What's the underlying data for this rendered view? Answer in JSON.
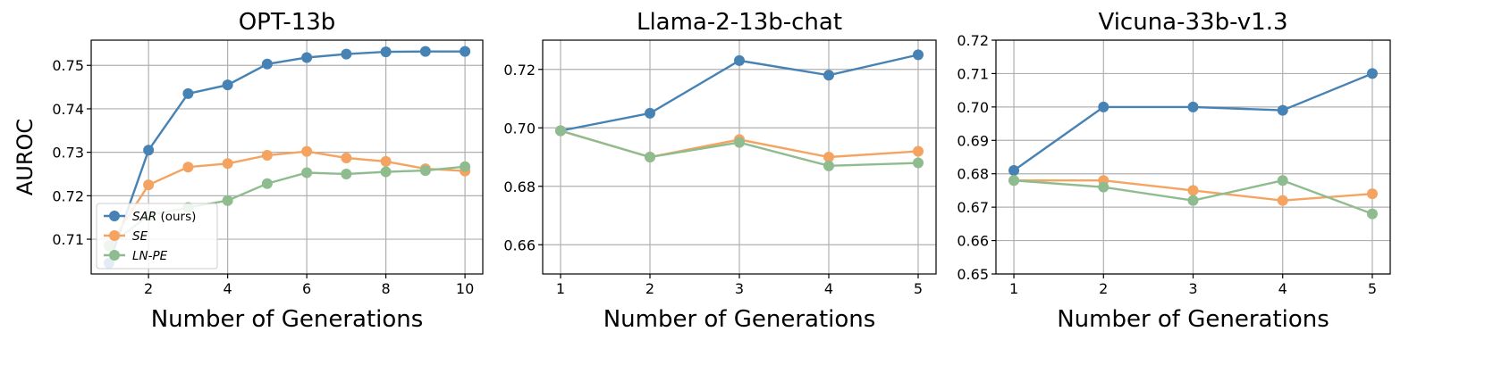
{
  "chart_data": [
    {
      "type": "line",
      "title": "OPT-13b",
      "xlabel": "Number of Generations",
      "ylabel": "AUROC",
      "xlim": [
        0.55,
        10.45
      ],
      "ylim": [
        0.702,
        0.7558
      ],
      "xticks": [
        2,
        4,
        6,
        8,
        10
      ],
      "yticks": [
        0.71,
        0.72,
        0.73,
        0.74,
        0.75
      ],
      "ytick_labels": [
        "0.71",
        "0.72",
        "0.73",
        "0.74",
        "0.75"
      ],
      "grid": true,
      "legend": "lower-left",
      "x": [
        1,
        2,
        3,
        4,
        5,
        6,
        7,
        8,
        9,
        10
      ],
      "series": [
        {
          "name": "SAR",
          "name_suffix": " (ours)",
          "color": "#4682b4",
          "values": [
            0.7045,
            0.7305,
            0.7435,
            0.7455,
            0.7503,
            0.7518,
            0.7526,
            0.7531,
            0.7532,
            0.7532
          ]
        },
        {
          "name": "SE",
          "color": "#f4a460",
          "values": [
            0.7085,
            0.7225,
            0.7266,
            0.7274,
            0.7293,
            0.7302,
            0.7287,
            0.7279,
            0.7262,
            0.7257
          ]
        },
        {
          "name": "LN-PE",
          "color": "#8fbc8f",
          "values": [
            0.7085,
            0.7155,
            0.7173,
            0.7189,
            0.7228,
            0.7253,
            0.725,
            0.7255,
            0.7258,
            0.7267
          ]
        }
      ]
    },
    {
      "type": "line",
      "title": "Llama-2-13b-chat",
      "xlabel": "Number of Generations",
      "ylabel": "",
      "xlim": [
        0.8,
        5.2
      ],
      "ylim": [
        0.65,
        0.73
      ],
      "xticks": [
        1,
        2,
        3,
        4,
        5
      ],
      "yticks": [
        0.66,
        0.68,
        0.7,
        0.72
      ],
      "ytick_labels": [
        "0.66",
        "0.68",
        "0.70",
        "0.72"
      ],
      "grid": true,
      "x": [
        1,
        2,
        3,
        4,
        5
      ],
      "series": [
        {
          "name": "SAR (ours)",
          "color": "#4682b4",
          "values": [
            0.699,
            0.705,
            0.723,
            0.718,
            0.725
          ]
        },
        {
          "name": "SE",
          "color": "#f4a460",
          "values": [
            0.699,
            0.69,
            0.696,
            0.69,
            0.692
          ]
        },
        {
          "name": "LN-PE",
          "color": "#8fbc8f",
          "values": [
            0.699,
            0.69,
            0.695,
            0.687,
            0.688
          ]
        }
      ]
    },
    {
      "type": "line",
      "title": "Vicuna-33b-v1.3",
      "xlabel": "Number of Generations",
      "ylabel": "",
      "xlim": [
        0.8,
        5.2
      ],
      "ylim": [
        0.65,
        0.72
      ],
      "xticks": [
        1,
        2,
        3,
        4,
        5
      ],
      "yticks": [
        0.65,
        0.66,
        0.67,
        0.68,
        0.69,
        0.7,
        0.71,
        0.72
      ],
      "ytick_labels": [
        "0.65",
        "0.66",
        "0.67",
        "0.68",
        "0.69",
        "0.70",
        "0.71",
        "0.72"
      ],
      "grid": true,
      "x": [
        1,
        2,
        3,
        4,
        5
      ],
      "series": [
        {
          "name": "SAR (ours)",
          "color": "#4682b4",
          "values": [
            0.681,
            0.7,
            0.7,
            0.699,
            0.71
          ]
        },
        {
          "name": "SE",
          "color": "#f4a460",
          "values": [
            0.678,
            0.678,
            0.675,
            0.672,
            0.674
          ]
        },
        {
          "name": "LN-PE",
          "color": "#8fbc8f",
          "values": [
            0.678,
            0.676,
            0.672,
            0.678,
            0.668
          ]
        }
      ]
    }
  ]
}
